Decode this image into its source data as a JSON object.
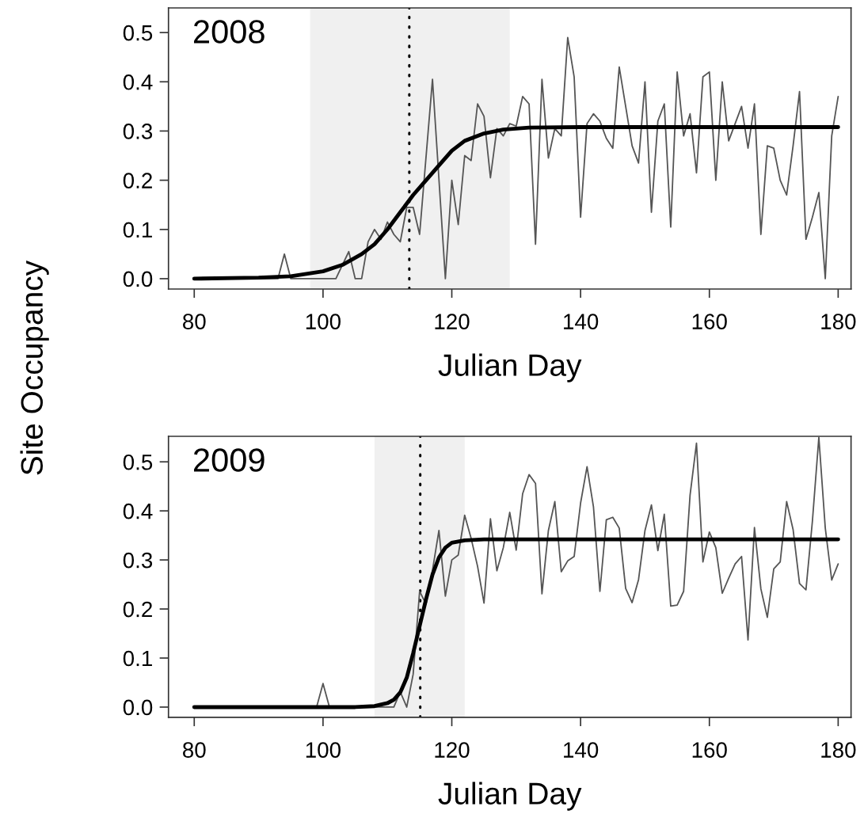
{
  "chart_data": [
    {
      "type": "line",
      "ylabel": "Site Occupancy",
      "xlabel": "Julian Day",
      "annotations": [
        "2008"
      ],
      "xlim": [
        76,
        182
      ],
      "xticks": [
        80,
        100,
        120,
        140,
        160,
        180
      ],
      "ylim": [
        -0.021,
        0.55
      ],
      "yticks": [
        {
          "value": 0,
          "label": "0.0"
        },
        {
          "value": 0.1,
          "label": "0.1"
        },
        {
          "value": 0.2,
          "label": "0.2"
        },
        {
          "value": 0.3,
          "label": "0.3"
        },
        {
          "value": 0.4,
          "label": "0.4"
        },
        {
          "value": 0.5,
          "label": "0.5"
        }
      ],
      "grid": false,
      "legend": false,
      "bands": [
        {
          "axis": "x",
          "from": 98,
          "to": 129,
          "color": "#f0f0f0"
        }
      ],
      "ref_lines": [
        {
          "axis": "x",
          "value": 113.4,
          "color": "#000000",
          "line_style": "dotted"
        }
      ],
      "series": [
        {
          "color": "#555555",
          "line_style": "solid",
          "x": [
            80,
            93,
            94,
            95,
            102,
            104,
            105,
            106,
            107,
            108,
            109,
            110,
            111,
            112,
            113,
            114,
            115,
            117,
            119,
            120,
            121,
            122,
            123,
            124,
            125,
            126,
            127,
            128,
            129,
            130,
            131,
            132,
            133,
            134,
            135,
            136,
            137,
            138,
            139,
            140,
            141,
            142,
            143,
            144,
            145,
            146,
            147,
            148,
            149,
            150,
            151,
            152,
            153,
            154,
            155,
            156,
            157,
            158,
            159,
            160,
            161,
            162,
            163,
            164,
            165,
            166,
            167,
            168,
            169,
            170,
            171,
            172,
            173,
            174,
            175,
            176,
            177,
            178,
            179,
            180
          ],
          "values": [
            0,
            0,
            0.05,
            0,
            0,
            0.055,
            0,
            0,
            0.075,
            0.1,
            0.08,
            0.115,
            0.09,
            0.075,
            0.145,
            0.145,
            0.09,
            0.405,
            0,
            0.2,
            0.11,
            0.25,
            0.24,
            0.355,
            0.33,
            0.205,
            0.305,
            0.29,
            0.315,
            0.31,
            0.37,
            0.355,
            0.07,
            0.405,
            0.245,
            0.305,
            0.29,
            0.49,
            0.41,
            0.125,
            0.315,
            0.335,
            0.32,
            0.285,
            0.265,
            0.43,
            0.35,
            0.27,
            0.235,
            0.4,
            0.135,
            0.32,
            0.355,
            0.105,
            0.42,
            0.29,
            0.335,
            0.215,
            0.41,
            0.42,
            0.2,
            0.4,
            0.28,
            0.315,
            0.35,
            0.265,
            0.355,
            0.09,
            0.27,
            0.265,
            0.2,
            0.17,
            0.27,
            0.38,
            0.08,
            0.125,
            0.175,
            0,
            0.29,
            0.37
          ]
        },
        {
          "color": "#000000",
          "line_style": "solid",
          "x": [
            80,
            90,
            95,
            100,
            103,
            106,
            108,
            110,
            112,
            114,
            116,
            118,
            120,
            122,
            125,
            128,
            132,
            140,
            180
          ],
          "values": [
            0,
            0.002,
            0.005,
            0.015,
            0.028,
            0.05,
            0.07,
            0.1,
            0.135,
            0.17,
            0.2,
            0.23,
            0.26,
            0.28,
            0.295,
            0.303,
            0.307,
            0.308,
            0.308
          ]
        }
      ]
    },
    {
      "type": "line",
      "xlabel": "Julian Day",
      "annotations": [
        "2009"
      ],
      "xlim": [
        76,
        182
      ],
      "xticks": [
        80,
        100,
        120,
        140,
        160,
        180
      ],
      "ylim": [
        -0.021,
        0.552
      ],
      "yticks": [
        {
          "value": 0,
          "label": "0.0"
        },
        {
          "value": 0.1,
          "label": "0.1"
        },
        {
          "value": 0.2,
          "label": "0.2"
        },
        {
          "value": 0.3,
          "label": "0.3"
        },
        {
          "value": 0.4,
          "label": "0.4"
        },
        {
          "value": 0.5,
          "label": "0.5"
        }
      ],
      "grid": false,
      "legend": false,
      "bands": [
        {
          "axis": "x",
          "from": 108,
          "to": 122,
          "color": "#f0f0f0"
        }
      ],
      "ref_lines": [
        {
          "axis": "x",
          "value": 115.1,
          "color": "#000000",
          "line_style": "dotted"
        }
      ],
      "series": [
        {
          "color": "#555555",
          "line_style": "solid",
          "x": [
            80,
            99,
            100,
            101,
            111,
            112,
            113,
            114,
            115,
            116,
            117,
            118,
            119,
            120,
            121,
            122,
            123,
            124,
            125,
            126,
            127,
            128,
            129,
            130,
            131,
            132,
            133,
            134,
            135,
            136,
            137,
            138,
            139,
            140,
            141,
            142,
            143,
            144,
            145,
            146,
            147,
            148,
            149,
            150,
            151,
            152,
            153,
            154,
            155,
            156,
            157,
            158,
            159,
            160,
            161,
            162,
            163,
            164,
            165,
            166,
            167,
            168,
            169,
            170,
            171,
            172,
            173,
            174,
            175,
            176,
            177,
            178,
            179,
            180
          ],
          "values": [
            0,
            0,
            0.048,
            0,
            0,
            0.031,
            0,
            0.067,
            0.236,
            0.21,
            0.279,
            0.36,
            0.226,
            0.3,
            0.31,
            0.391,
            0.344,
            0.287,
            0.212,
            0.384,
            0.278,
            0.325,
            0.397,
            0.32,
            0.435,
            0.474,
            0.456,
            0.231,
            0.36,
            0.419,
            0.276,
            0.298,
            0.307,
            0.416,
            0.49,
            0.408,
            0.236,
            0.382,
            0.387,
            0.365,
            0.242,
            0.213,
            0.26,
            0.36,
            0.412,
            0.319,
            0.393,
            0.206,
            0.208,
            0.236,
            0.432,
            0.538,
            0.296,
            0.357,
            0.325,
            0.232,
            0.263,
            0.292,
            0.307,
            0.137,
            0.366,
            0.241,
            0.183,
            0.282,
            0.296,
            0.419,
            0.362,
            0.252,
            0.239,
            0.379,
            0.55,
            0.365,
            0.259,
            0.292
          ]
        },
        {
          "color": "#000000",
          "line_style": "solid",
          "x": [
            80,
            105,
            108,
            110,
            111,
            112,
            113,
            114,
            115,
            116,
            117,
            118,
            119,
            120,
            122,
            125,
            180
          ],
          "values": [
            0,
            0,
            0.002,
            0.008,
            0.015,
            0.03,
            0.06,
            0.11,
            0.165,
            0.22,
            0.27,
            0.305,
            0.325,
            0.335,
            0.34,
            0.342,
            0.342
          ]
        }
      ]
    }
  ]
}
